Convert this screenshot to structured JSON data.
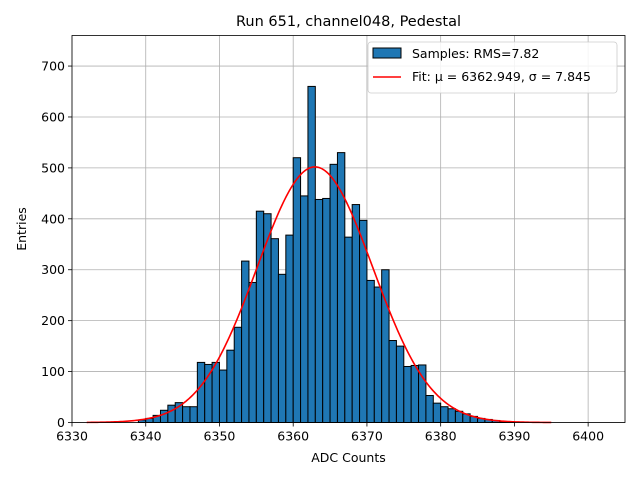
{
  "chart_data": {
    "type": "bar",
    "title": "Run 651, channel048, Pedestal",
    "xlabel": "ADC Counts",
    "ylabel": "Entries",
    "xlim": [
      6330,
      6405
    ],
    "ylim": [
      0,
      760
    ],
    "x_ticks": [
      "6330",
      "6340",
      "6350",
      "6360",
      "6370",
      "6380",
      "6390",
      "6400"
    ],
    "y_ticks": [
      "0",
      "100",
      "200",
      "300",
      "400",
      "500",
      "600",
      "700"
    ],
    "grid": true,
    "legend_position": "top-right",
    "histogram": {
      "name": "Samples: RMS=7.82",
      "color": "#1f77b4",
      "bin_edges": [
        6339,
        6340,
        6341,
        6342,
        6343,
        6344,
        6345,
        6346,
        6347,
        6348,
        6349,
        6350,
        6351,
        6352,
        6353,
        6354,
        6355,
        6356,
        6357,
        6358,
        6359,
        6360,
        6361,
        6362,
        6363,
        6364,
        6365,
        6366,
        6367,
        6368,
        6369,
        6370,
        6371,
        6372,
        6373,
        6374,
        6375,
        6376,
        6377,
        6378,
        6379,
        6380,
        6381,
        6382,
        6383,
        6384,
        6385,
        6386,
        6387,
        6388,
        6389,
        6390
      ],
      "values": [
        5,
        8,
        14,
        24,
        34,
        39,
        31,
        31,
        118,
        114,
        118,
        103,
        142,
        187,
        317,
        275,
        415,
        410,
        361,
        291,
        368,
        520,
        445,
        660,
        438,
        440,
        507,
        530,
        364,
        428,
        397,
        279,
        266,
        300,
        161,
        150,
        110,
        112,
        113,
        53,
        38,
        31,
        27,
        22,
        17,
        12,
        8,
        6,
        4,
        2,
        1
      ]
    },
    "fit": {
      "name": "Fit: μ = 6362.949, σ = 7.845",
      "color": "#ff0000",
      "mu": 6362.949,
      "sigma": 7.845,
      "amplitude": 502,
      "x_range": [
        6332,
        6395
      ]
    }
  }
}
